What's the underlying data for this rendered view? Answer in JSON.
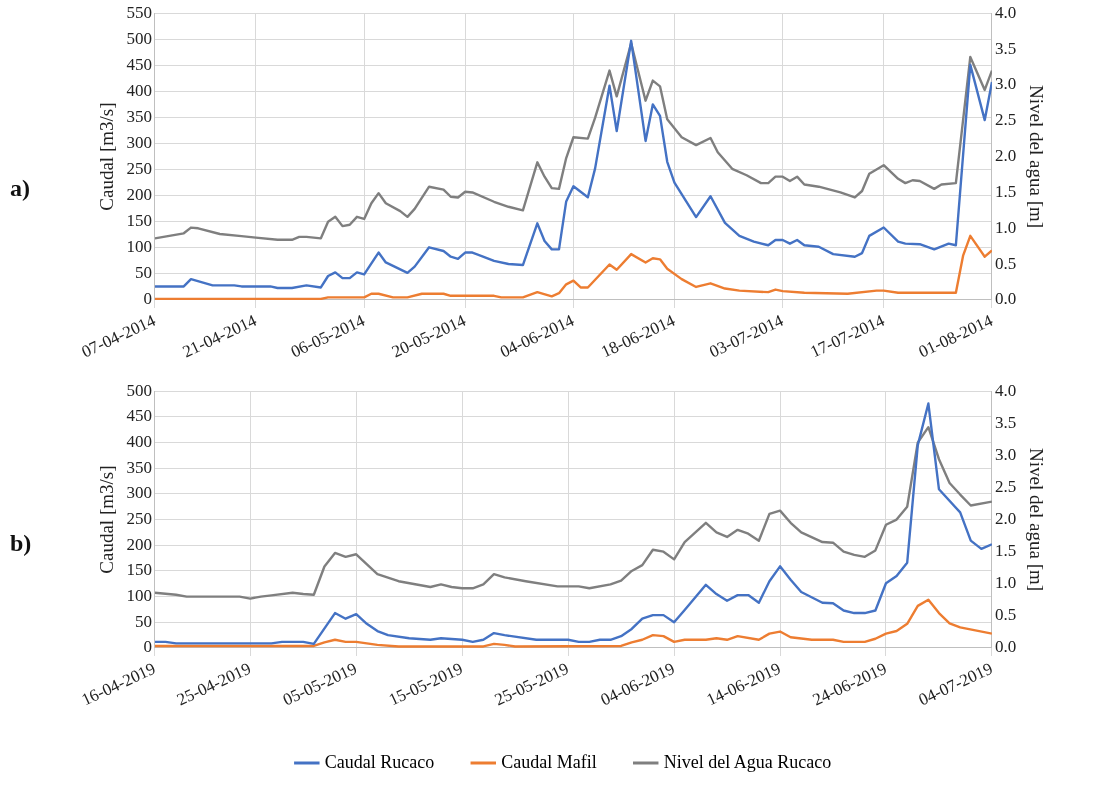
{
  "chart_data": [
    {
      "type": "line",
      "ylabel": "Caudal [m3/s]",
      "y2label": "Nivel del agua [m]",
      "annotations": [
        "a)"
      ],
      "grid": true,
      "legend": false,
      "marker": "none",
      "line_style": "solid",
      "xlim": [
        "2014-04-07",
        "2014-08-01"
      ],
      "xticks": [
        {
          "value": "2014-04-07",
          "label": "07-04-2014"
        },
        {
          "value": "2014-04-21",
          "label": "21-04-2014"
        },
        {
          "value": "2014-05-06",
          "label": "06-05-2014"
        },
        {
          "value": "2014-05-20",
          "label": "20-05-2014"
        },
        {
          "value": "2014-06-04",
          "label": "04-06-2014"
        },
        {
          "value": "2014-06-18",
          "label": "18-06-2014"
        },
        {
          "value": "2014-07-03",
          "label": "03-07-2014"
        },
        {
          "value": "2014-07-17",
          "label": "17-07-2014"
        },
        {
          "value": "2014-08-01",
          "label": "01-08-2014"
        }
      ],
      "ylim": [
        0,
        550
      ],
      "yticks": [
        0,
        50,
        100,
        150,
        200,
        250,
        300,
        350,
        400,
        450,
        500,
        550
      ],
      "y2lim": [
        0,
        4
      ],
      "y2ticks": [
        {
          "value": 0,
          "label": "0.0"
        },
        0.5,
        {
          "value": 1,
          "label": "1.0"
        },
        1.5,
        {
          "value": 2,
          "label": "2.0"
        },
        2.5,
        {
          "value": 3,
          "label": "3.0"
        },
        3.5,
        {
          "value": 4,
          "label": "4.0"
        }
      ],
      "series": [
        {
          "color": "#4472c4",
          "x": [
            "2014-04-07",
            "2014-04-11",
            "2014-04-12",
            "2014-04-15",
            "2014-04-18",
            "2014-04-19",
            "2014-04-23",
            "2014-04-24",
            "2014-04-26",
            "2014-04-28",
            "2014-04-30",
            "2014-05-01",
            "2014-05-02",
            "2014-05-03",
            "2014-05-04",
            "2014-05-05",
            "2014-05-06",
            "2014-05-08",
            "2014-05-09",
            "2014-05-12",
            "2014-05-13",
            "2014-05-15",
            "2014-05-17",
            "2014-05-18",
            "2014-05-19",
            "2014-05-20",
            "2014-05-21",
            "2014-05-24",
            "2014-05-26",
            "2014-05-28",
            "2014-05-30",
            "2014-05-31",
            "2014-06-01",
            "2014-06-02",
            "2014-06-03",
            "2014-06-04",
            "2014-06-06",
            "2014-06-07",
            "2014-06-09",
            "2014-06-10",
            "2014-06-12",
            "2014-06-14",
            "2014-06-15",
            "2014-06-16",
            "2014-06-17",
            "2014-06-18",
            "2014-06-21",
            "2014-06-23",
            "2014-06-25",
            "2014-06-27",
            "2014-06-29",
            "2014-07-01",
            "2014-07-02",
            "2014-07-03",
            "2014-07-04",
            "2014-07-05",
            "2014-07-06",
            "2014-07-08",
            "2014-07-10",
            "2014-07-13",
            "2014-07-14",
            "2014-07-15",
            "2014-07-17",
            "2014-07-19",
            "2014-07-20",
            "2014-07-22",
            "2014-07-24",
            "2014-07-26",
            "2014-07-27",
            "2014-07-29",
            "2014-07-31",
            "2014-08-01"
          ],
          "values": [
            26,
            26,
            40,
            28,
            28,
            26,
            26,
            23,
            23,
            28,
            24,
            46,
            53,
            42,
            42,
            53,
            49,
            91,
            72,
            52,
            64,
            101,
            94,
            83,
            79,
            91,
            91,
            75,
            69,
            67,
            147,
            113,
            97,
            97,
            189,
            218,
            197,
            252,
            411,
            324,
            497,
            305,
            375,
            353,
            265,
            225,
            159,
            199,
            148,
            123,
            112,
            105,
            115,
            115,
            108,
            115,
            105,
            102,
            88,
            83,
            90,
            123,
            139,
            112,
            108,
            107,
            97,
            108,
            105,
            451,
            345,
            418
          ]
        },
        {
          "color": "#ed7d31",
          "x": [
            "2014-04-07",
            "2014-04-30",
            "2014-05-01",
            "2014-05-06",
            "2014-05-07",
            "2014-05-08",
            "2014-05-10",
            "2014-05-12",
            "2014-05-14",
            "2014-05-17",
            "2014-05-18",
            "2014-05-24",
            "2014-05-25",
            "2014-05-28",
            "2014-05-30",
            "2014-06-01",
            "2014-06-02",
            "2014-06-03",
            "2014-06-04",
            "2014-06-05",
            "2014-06-06",
            "2014-06-09",
            "2014-06-10",
            "2014-06-12",
            "2014-06-14",
            "2014-06-15",
            "2014-06-16",
            "2014-06-17",
            "2014-06-19",
            "2014-06-21",
            "2014-06-23",
            "2014-06-25",
            "2014-06-27",
            "2014-07-01",
            "2014-07-02",
            "2014-07-03",
            "2014-07-06",
            "2014-07-12",
            "2014-07-16",
            "2014-07-17",
            "2014-07-19",
            "2014-07-27",
            "2014-07-28",
            "2014-07-29",
            "2014-07-31",
            "2014-08-01"
          ],
          "values": [
            2,
            2,
            5,
            5,
            12,
            12,
            5,
            5,
            12,
            12,
            8,
            8,
            5,
            5,
            15,
            7,
            13,
            30,
            37,
            24,
            24,
            68,
            58,
            88,
            72,
            80,
            78,
            60,
            40,
            25,
            32,
            22,
            18,
            15,
            20,
            17,
            14,
            12,
            18,
            18,
            14,
            14,
            85,
            123,
            83,
            95
          ]
        },
        {
          "color": "#7f7f7f",
          "axis": "y2",
          "x": [
            "2014-04-07",
            "2014-04-11",
            "2014-04-12",
            "2014-04-13",
            "2014-04-16",
            "2014-04-19",
            "2014-04-21",
            "2014-04-24",
            "2014-04-26",
            "2014-04-27",
            "2014-04-28",
            "2014-04-30",
            "2014-05-01",
            "2014-05-02",
            "2014-05-03",
            "2014-05-04",
            "2014-05-05",
            "2014-05-06",
            "2014-05-07",
            "2014-05-08",
            "2014-05-09",
            "2014-05-11",
            "2014-05-12",
            "2014-05-13",
            "2014-05-15",
            "2014-05-17",
            "2014-05-18",
            "2014-05-19",
            "2014-05-20",
            "2014-05-21",
            "2014-05-24",
            "2014-05-26",
            "2014-05-28",
            "2014-05-30",
            "2014-05-31",
            "2014-06-01",
            "2014-06-02",
            "2014-06-03",
            "2014-06-04",
            "2014-06-06",
            "2014-06-07",
            "2014-06-09",
            "2014-06-10",
            "2014-06-12",
            "2014-06-14",
            "2014-06-15",
            "2014-06-16",
            "2014-06-17",
            "2014-06-19",
            "2014-06-21",
            "2014-06-23",
            "2014-06-24",
            "2014-06-26",
            "2014-06-28",
            "2014-06-30",
            "2014-07-01",
            "2014-07-02",
            "2014-07-03",
            "2014-07-04",
            "2014-07-05",
            "2014-07-06",
            "2014-07-08",
            "2014-07-11",
            "2014-07-13",
            "2014-07-14",
            "2014-07-15",
            "2014-07-17",
            "2014-07-19",
            "2014-07-20",
            "2014-07-21",
            "2014-07-22",
            "2014-07-24",
            "2014-07-25",
            "2014-07-27",
            "2014-07-29",
            "2014-07-31",
            "2014-08-01"
          ],
          "values": [
            0.86,
            0.93,
            1.01,
            1.0,
            0.92,
            0.89,
            0.87,
            0.84,
            0.84,
            0.88,
            0.88,
            0.86,
            1.09,
            1.16,
            1.03,
            1.05,
            1.16,
            1.13,
            1.35,
            1.49,
            1.35,
            1.24,
            1.16,
            1.27,
            1.58,
            1.54,
            1.44,
            1.43,
            1.51,
            1.5,
            1.37,
            1.3,
            1.25,
            1.92,
            1.72,
            1.56,
            1.55,
            1.98,
            2.27,
            2.25,
            2.54,
            3.2,
            2.84,
            3.58,
            2.78,
            3.06,
            2.98,
            2.52,
            2.27,
            2.16,
            2.26,
            2.06,
            1.83,
            1.74,
            1.63,
            1.63,
            1.72,
            1.72,
            1.66,
            1.72,
            1.61,
            1.58,
            1.5,
            1.43,
            1.52,
            1.76,
            1.88,
            1.69,
            1.63,
            1.67,
            1.66,
            1.55,
            1.61,
            1.63,
            3.39,
            2.93,
            3.2
          ]
        }
      ]
    },
    {
      "type": "line",
      "ylabel": "Caudal [m3/s]",
      "y2label": "Nivel del agua [m]",
      "annotations": [
        "b)"
      ],
      "grid": true,
      "legend": "bottom",
      "marker": "none",
      "line_style": "solid",
      "xlim": [
        "2019-04-16",
        "2019-07-04"
      ],
      "xticks": [
        {
          "value": "2019-04-16",
          "label": "16-04-2019"
        },
        {
          "value": "2019-04-25",
          "label": "25-04-2019"
        },
        {
          "value": "2019-05-05",
          "label": "05-05-2019"
        },
        {
          "value": "2019-05-15",
          "label": "15-05-2019"
        },
        {
          "value": "2019-05-25",
          "label": "25-05-2019"
        },
        {
          "value": "2019-06-04",
          "label": "04-06-2019"
        },
        {
          "value": "2019-06-14",
          "label": "14-06-2019"
        },
        {
          "value": "2019-06-24",
          "label": "24-06-2019"
        },
        {
          "value": "2019-07-04",
          "label": "04-07-2019"
        }
      ],
      "ylim": [
        0,
        500
      ],
      "yticks": [
        0,
        50,
        100,
        150,
        200,
        250,
        300,
        350,
        400,
        450,
        500
      ],
      "y2lim": [
        0,
        4
      ],
      "y2ticks": [
        {
          "value": 0,
          "label": "0.0"
        },
        0.5,
        {
          "value": 1,
          "label": "1.0"
        },
        1.5,
        {
          "value": 2,
          "label": "2.0"
        },
        2.5,
        {
          "value": 3,
          "label": "3.0"
        },
        3.5,
        {
          "value": 4,
          "label": "4.0"
        }
      ],
      "series": [
        {
          "name": "Caudal Rucaco",
          "color": "#4472c4",
          "x": [
            "2019-04-16",
            "2019-04-17",
            "2019-04-18",
            "2019-04-27",
            "2019-04-28",
            "2019-04-30",
            "2019-05-01",
            "2019-05-03",
            "2019-05-04",
            "2019-05-05",
            "2019-05-06",
            "2019-05-07",
            "2019-05-08",
            "2019-05-10",
            "2019-05-12",
            "2019-05-13",
            "2019-05-15",
            "2019-05-16",
            "2019-05-17",
            "2019-05-18",
            "2019-05-19",
            "2019-05-22",
            "2019-05-25",
            "2019-05-26",
            "2019-05-27",
            "2019-05-28",
            "2019-05-29",
            "2019-05-30",
            "2019-05-31",
            "2019-06-01",
            "2019-06-02",
            "2019-06-03",
            "2019-06-04",
            "2019-06-05",
            "2019-06-07",
            "2019-06-08",
            "2019-06-09",
            "2019-06-10",
            "2019-06-11",
            "2019-06-12",
            "2019-06-13",
            "2019-06-14",
            "2019-06-15",
            "2019-06-16",
            "2019-06-18",
            "2019-06-19",
            "2019-06-20",
            "2019-06-21",
            "2019-06-22",
            "2019-06-23",
            "2019-06-24",
            "2019-06-25",
            "2019-06-26",
            "2019-06-27",
            "2019-06-28",
            "2019-06-29",
            "2019-07-01",
            "2019-07-02",
            "2019-07-03",
            "2019-07-04"
          ],
          "values": [
            12,
            12,
            9,
            9,
            12,
            12,
            8,
            68,
            57,
            66,
            47,
            33,
            25,
            19,
            16,
            19,
            16,
            12,
            16,
            29,
            25,
            16,
            16,
            12,
            12,
            16,
            16,
            23,
            37,
            57,
            64,
            64,
            50,
            74,
            123,
            105,
            92,
            103,
            103,
            88,
            130,
            159,
            133,
            109,
            88,
            87,
            73,
            68,
            68,
            73,
            126,
            140,
            166,
            395,
            476,
            309,
            264,
            209,
            193,
            202
          ]
        },
        {
          "name": "Caudal Mafil",
          "color": "#ed7d31",
          "x": [
            "2019-04-16",
            "2019-05-01",
            "2019-05-02",
            "2019-05-03",
            "2019-05-04",
            "2019-05-05",
            "2019-05-07",
            "2019-05-09",
            "2019-05-17",
            "2019-05-18",
            "2019-05-19",
            "2019-05-20",
            "2019-05-30",
            "2019-05-31",
            "2019-06-01",
            "2019-06-02",
            "2019-06-03",
            "2019-06-04",
            "2019-06-05",
            "2019-06-07",
            "2019-06-08",
            "2019-06-09",
            "2019-06-10",
            "2019-06-12",
            "2019-06-13",
            "2019-06-14",
            "2019-06-15",
            "2019-06-17",
            "2019-06-19",
            "2019-06-20",
            "2019-06-22",
            "2019-06-23",
            "2019-06-24",
            "2019-06-25",
            "2019-06-26",
            "2019-06-27",
            "2019-06-28",
            "2019-06-29",
            "2019-06-30",
            "2019-07-01",
            "2019-07-04"
          ],
          "values": [
            4,
            4,
            11,
            16,
            12,
            12,
            6,
            3,
            3,
            8,
            6,
            3,
            4,
            11,
            16,
            25,
            23,
            12,
            16,
            16,
            19,
            16,
            23,
            16,
            28,
            32,
            21,
            16,
            16,
            12,
            12,
            18,
            28,
            33,
            47,
            82,
            94,
            68,
            48,
            40,
            28
          ]
        },
        {
          "name": "Nivel del Agua Rucaco",
          "color": "#7f7f7f",
          "axis": "y2",
          "x": [
            "2019-04-16",
            "2019-04-18",
            "2019-04-19",
            "2019-04-24",
            "2019-04-25",
            "2019-04-26",
            "2019-04-27",
            "2019-04-29",
            "2019-04-30",
            "2019-05-01",
            "2019-05-02",
            "2019-05-03",
            "2019-05-04",
            "2019-05-05",
            "2019-05-07",
            "2019-05-09",
            "2019-05-12",
            "2019-05-13",
            "2019-05-14",
            "2019-05-15",
            "2019-05-16",
            "2019-05-17",
            "2019-05-18",
            "2019-05-19",
            "2019-05-21",
            "2019-05-24",
            "2019-05-26",
            "2019-05-27",
            "2019-05-29",
            "2019-05-30",
            "2019-05-31",
            "2019-06-01",
            "2019-06-02",
            "2019-06-03",
            "2019-06-04",
            "2019-06-05",
            "2019-06-07",
            "2019-06-08",
            "2019-06-09",
            "2019-06-10",
            "2019-06-11",
            "2019-06-12",
            "2019-06-13",
            "2019-06-14",
            "2019-06-15",
            "2019-06-16",
            "2019-06-18",
            "2019-06-19",
            "2019-06-20",
            "2019-06-21",
            "2019-06-22",
            "2019-06-23",
            "2019-06-24",
            "2019-06-25",
            "2019-06-26",
            "2019-06-27",
            "2019-06-28",
            "2019-06-29",
            "2019-06-30",
            "2019-07-01",
            "2019-07-02",
            "2019-07-04"
          ],
          "values": [
            0.86,
            0.83,
            0.8,
            0.8,
            0.77,
            0.8,
            0.82,
            0.86,
            0.84,
            0.83,
            1.27,
            1.48,
            1.42,
            1.46,
            1.15,
            1.04,
            0.95,
            0.99,
            0.95,
            0.93,
            0.93,
            0.99,
            1.15,
            1.1,
            1.04,
            0.96,
            0.96,
            0.93,
            0.99,
            1.05,
            1.2,
            1.29,
            1.53,
            1.5,
            1.38,
            1.65,
            1.95,
            1.8,
            1.73,
            1.84,
            1.78,
            1.67,
            2.09,
            2.14,
            1.95,
            1.8,
            1.65,
            1.64,
            1.5,
            1.45,
            1.42,
            1.52,
            1.92,
            2.0,
            2.2,
            3.2,
            3.44,
            2.94,
            2.57,
            2.39,
            2.22,
            2.28
          ]
        }
      ]
    }
  ]
}
